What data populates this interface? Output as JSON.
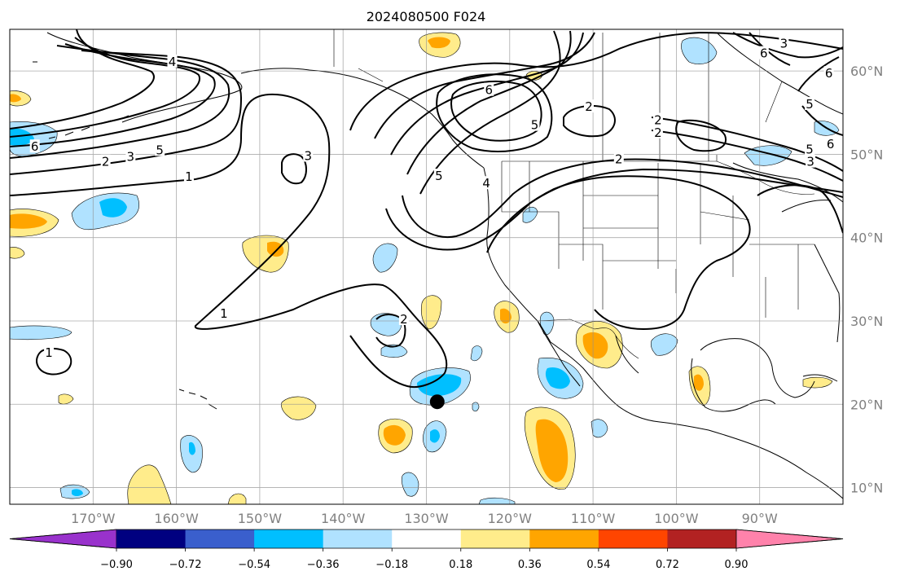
{
  "title": "2024080500 F024",
  "lat_labels": [
    {
      "text": "60°N",
      "lat": 60
    },
    {
      "text": "50°N",
      "lat": 50
    },
    {
      "text": "40°N",
      "lat": 40
    },
    {
      "text": "30°N",
      "lat": 30
    },
    {
      "text": "20°N",
      "lat": 20
    },
    {
      "text": "10°N",
      "lat": 10
    }
  ],
  "lon_labels": [
    {
      "text": "170°W",
      "lon": -170
    },
    {
      "text": "160°W",
      "lon": -160
    },
    {
      "text": "150°W",
      "lon": -150
    },
    {
      "text": "140°W",
      "lon": -140
    },
    {
      "text": "130°W",
      "lon": -130
    },
    {
      "text": "120°W",
      "lon": -120
    },
    {
      "text": "110°W",
      "lon": -110
    },
    {
      "text": "100°W",
      "lon": -100
    },
    {
      "text": "90°W",
      "lon": -90
    }
  ],
  "map_extent": {
    "lon_min": -180,
    "lon_max": -80,
    "lat_min": 8,
    "lat_max": 65
  },
  "colorbar": {
    "colors": [
      "#9932cc",
      "#000080",
      "#3a5fcd",
      "#00bfff",
      "#b0e2ff",
      "#ffffff",
      "#ffec8b",
      "#ffa500",
      "#ff4500",
      "#b22222",
      "#ff82ab"
    ],
    "tick_labels": [
      "−0.90",
      "−0.72",
      "−0.54",
      "−0.36",
      "−0.18",
      "0.18",
      "0.36",
      "0.54",
      "0.72",
      "0.90"
    ],
    "extend": "both"
  },
  "marker": {
    "lon": -128.7,
    "lat": 20.3,
    "shape": "filled-circle",
    "color": "#000000"
  },
  "contour_labels": [
    "1",
    "2",
    "3",
    "4",
    "5",
    "6"
  ],
  "contour_label_instances": [
    {
      "text": "4",
      "lon": -160.5,
      "lat": 61
    },
    {
      "text": "5",
      "lon": -162,
      "lat": 50.4
    },
    {
      "text": "3",
      "lon": -165.5,
      "lat": 49.6
    },
    {
      "text": "2",
      "lon": -168.5,
      "lat": 49.0
    },
    {
      "text": "6",
      "lon": -177,
      "lat": 50.8
    },
    {
      "text": "1",
      "lon": -158.5,
      "lat": 47.2
    },
    {
      "text": "3",
      "lon": -144.2,
      "lat": 49.7
    },
    {
      "text": "1",
      "lon": -154.3,
      "lat": 30.8
    },
    {
      "text": "1",
      "lon": -175.3,
      "lat": 26.1
    },
    {
      "text": "2",
      "lon": -132.7,
      "lat": 30.1
    },
    {
      "text": "5",
      "lon": -128.5,
      "lat": 47.3
    },
    {
      "text": "4",
      "lon": -122.8,
      "lat": 46.4
    },
    {
      "text": "6",
      "lon": -122.5,
      "lat": 57.6
    },
    {
      "text": "5",
      "lon": -117.0,
      "lat": 53.4
    },
    {
      "text": "2",
      "lon": -110.5,
      "lat": 55.6
    },
    {
      "text": "2",
      "lon": -102.2,
      "lat": 52.5
    },
    {
      "text": "2",
      "lon": -102.2,
      "lat": 54.0
    },
    {
      "text": "2",
      "lon": -106.9,
      "lat": 49.3
    },
    {
      "text": "3",
      "lon": -87.1,
      "lat": 63.2
    },
    {
      "text": "6",
      "lon": -89.5,
      "lat": 62.0
    },
    {
      "text": "6",
      "lon": -81.7,
      "lat": 59.6
    },
    {
      "text": "5",
      "lon": -84.0,
      "lat": 55.9
    },
    {
      "text": "5",
      "lon": -84.0,
      "lat": 50.5
    },
    {
      "text": "3",
      "lon": -83.9,
      "lat": 49.0
    },
    {
      "text": "6",
      "lon": -81.5,
      "lat": 51.1
    }
  ]
}
